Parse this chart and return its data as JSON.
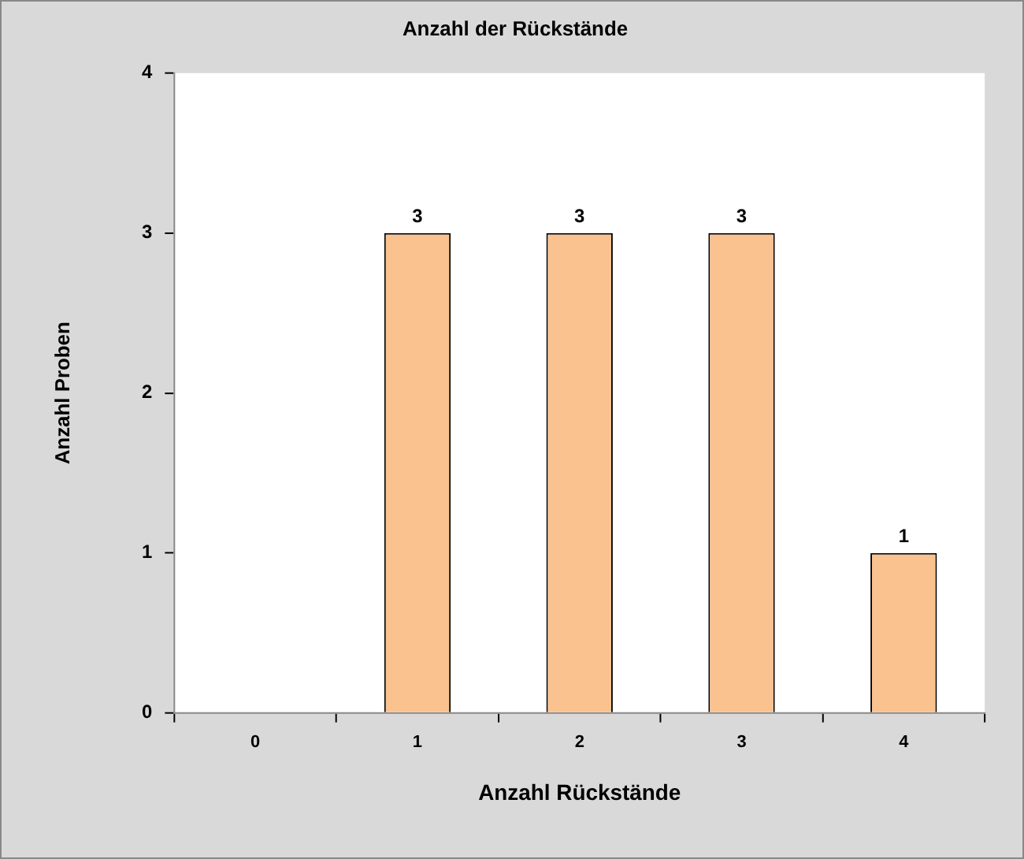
{
  "chart_data": {
    "type": "bar",
    "title": "Anzahl der Rückstände",
    "xlabel": "Anzahl Rückstände",
    "ylabel": "Anzahl Proben",
    "categories": [
      "0",
      "1",
      "2",
      "3",
      "4"
    ],
    "values": [
      0,
      3,
      3,
      3,
      1
    ],
    "value_labels": [
      null,
      "3",
      "3",
      "3",
      "1"
    ],
    "color": "#f9c28f",
    "ylim": [
      0,
      4
    ],
    "yticks": [
      0,
      1,
      2,
      3,
      4
    ],
    "grid": false,
    "legend": false
  }
}
